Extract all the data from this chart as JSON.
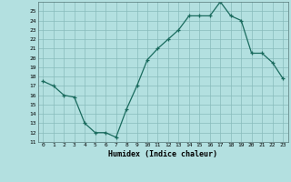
{
  "x": [
    0,
    1,
    2,
    3,
    4,
    5,
    6,
    7,
    8,
    9,
    10,
    11,
    12,
    13,
    14,
    15,
    16,
    17,
    18,
    19,
    20,
    21,
    22,
    23
  ],
  "y": [
    17.5,
    17.0,
    16.0,
    15.8,
    13.0,
    12.0,
    12.0,
    11.5,
    14.5,
    17.0,
    19.8,
    21.0,
    22.0,
    23.0,
    24.5,
    24.5,
    24.5,
    26.0,
    24.5,
    24.0,
    20.5,
    20.5,
    19.5,
    17.8
  ],
  "xlabel": "Humidex (Indice chaleur)",
  "ylim": [
    11,
    26
  ],
  "xlim": [
    -0.5,
    23.5
  ],
  "yticks": [
    11,
    12,
    13,
    14,
    15,
    16,
    17,
    18,
    19,
    20,
    21,
    22,
    23,
    24,
    25
  ],
  "xticks": [
    0,
    1,
    2,
    3,
    4,
    5,
    6,
    7,
    8,
    9,
    10,
    11,
    12,
    13,
    14,
    15,
    16,
    17,
    18,
    19,
    20,
    21,
    22,
    23
  ],
  "line_color": "#1a6b5e",
  "marker_color": "#1a6b5e",
  "bg_color": "#b3e0e0",
  "grid_color": "#88bbbb"
}
